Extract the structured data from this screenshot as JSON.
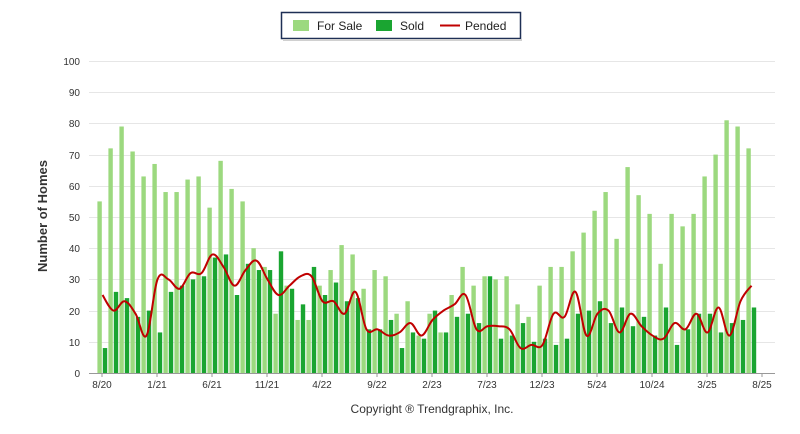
{
  "chart_data": {
    "type": "bar",
    "ylabel": "Number of Homes",
    "xlabel": "",
    "ylim": [
      0,
      100
    ],
    "yticks": [
      0,
      10,
      20,
      30,
      40,
      50,
      60,
      70,
      80,
      90,
      100
    ],
    "grid": "horizontal",
    "legend_position": "top-center",
    "footer": "Copyright ® Trendgraphix, Inc.",
    "x_tick_labels": [
      {
        "label": "8/20",
        "index": 0
      },
      {
        "label": "1/21",
        "index": 5
      },
      {
        "label": "6/21",
        "index": 10
      },
      {
        "label": "11/21",
        "index": 15
      },
      {
        "label": "4/22",
        "index": 20
      },
      {
        "label": "9/22",
        "index": 25
      },
      {
        "label": "2/23",
        "index": 30
      },
      {
        "label": "7/23",
        "index": 35
      },
      {
        "label": "12/23",
        "index": 40
      },
      {
        "label": "5/24",
        "index": 45
      },
      {
        "label": "10/24",
        "index": 50
      },
      {
        "label": "3/25",
        "index": 55
      },
      {
        "label": "8/25",
        "index": 60
      }
    ],
    "series": [
      {
        "name": "For Sale",
        "kind": "bar",
        "color": "#9cd97f",
        "values": [
          55,
          72,
          79,
          71,
          63,
          67,
          58,
          58,
          62,
          63,
          53,
          68,
          59,
          55,
          40,
          34,
          19,
          28,
          17,
          17,
          28,
          33,
          41,
          38,
          27,
          33,
          31,
          19,
          23,
          12,
          19,
          13,
          25,
          34,
          28,
          31,
          30,
          31,
          22,
          18,
          28,
          34,
          34,
          39,
          45,
          52,
          58,
          43,
          66,
          57,
          51,
          35,
          51,
          47,
          51,
          63,
          70,
          81,
          79,
          72
        ]
      },
      {
        "name": "Sold",
        "kind": "bar",
        "color": "#1aa531",
        "values": [
          8,
          26,
          24,
          18,
          20,
          13,
          26,
          28,
          30,
          31,
          37,
          38,
          25,
          35,
          33,
          33,
          39,
          27,
          22,
          34,
          25,
          29,
          23,
          24,
          14,
          14,
          17,
          8,
          13,
          11,
          20,
          13,
          18,
          19,
          16,
          31,
          11,
          12,
          16,
          10,
          11,
          9,
          11,
          19,
          20,
          23,
          16,
          21,
          15,
          18,
          12,
          21,
          9,
          14,
          19,
          19,
          13,
          16,
          17,
          21
        ]
      },
      {
        "name": "Pended",
        "kind": "line",
        "color": "#c00000",
        "values": [
          25,
          20,
          23,
          19,
          12,
          30,
          30,
          27,
          32,
          32,
          38,
          34,
          28,
          33,
          36,
          30,
          25,
          28,
          31,
          31,
          23,
          23,
          19,
          26,
          14,
          14,
          12,
          13,
          16,
          12,
          17,
          20,
          22,
          25,
          14,
          15,
          15,
          14,
          8,
          9,
          9,
          19,
          18,
          26,
          12,
          19,
          20,
          13,
          19,
          15,
          12,
          11,
          16,
          14,
          19,
          13,
          21,
          12,
          23,
          28
        ]
      }
    ]
  }
}
